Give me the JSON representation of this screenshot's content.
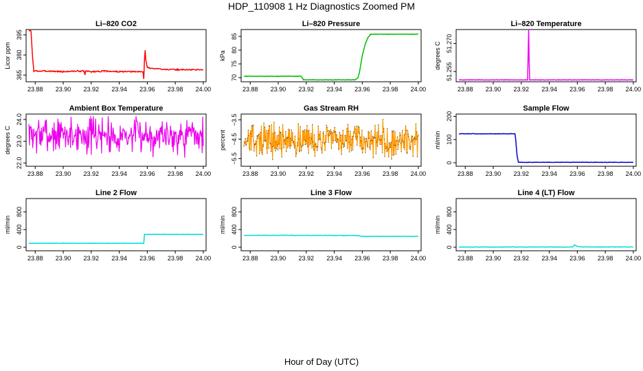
{
  "figure": {
    "title": "HDP_110908  1 Hz Diagnostics Zoomed PM",
    "xlabel": "Hour of Day (UTC)"
  },
  "chart_data": [
    {
      "id": "co2",
      "type": "line",
      "title": "Li–820 CO2",
      "ylabel": "Licor ppm",
      "color": "#ff0000",
      "xlim": [
        23.8735,
        24.002
      ],
      "ylim": [
        360,
        399
      ],
      "xticks": [
        23.88,
        23.9,
        23.92,
        23.94,
        23.96,
        23.98,
        24.0
      ],
      "xtick_labels": [
        "23.88",
        "23.90",
        "23.92",
        "23.94",
        "23.96",
        "23.98",
        "24.00"
      ],
      "yticks": [
        365,
        380,
        395
      ],
      "ytick_labels": [
        "365",
        "380",
        "395"
      ],
      "series": [
        {
          "x": [
            23.8755,
            23.877,
            23.878,
            23.879,
            23.88,
            23.89,
            23.9,
            23.91,
            23.915,
            23.9155,
            23.916,
            23.92,
            23.93,
            23.94,
            23.95,
            23.957,
            23.9575,
            23.958,
            23.9585,
            23.959,
            23.96,
            23.962,
            23.97,
            23.98,
            23.99,
            24.0
          ],
          "y": [
            398,
            398,
            380,
            368,
            368,
            368,
            367.5,
            368,
            368,
            365,
            368,
            367.5,
            368,
            367.5,
            367.5,
            367.5,
            362,
            376,
            384,
            376,
            371,
            370,
            369.5,
            369,
            369,
            369
          ]
        }
      ]
    },
    {
      "id": "pressure",
      "type": "line",
      "title": "Li–820 Pressure",
      "ylabel": "kPa",
      "color": "#00bb00",
      "xlim": [
        23.8735,
        24.002
      ],
      "ylim": [
        68.5,
        87.5
      ],
      "xticks": [
        23.88,
        23.9,
        23.92,
        23.94,
        23.96,
        23.98,
        24.0
      ],
      "xtick_labels": [
        "23.88",
        "23.90",
        "23.92",
        "23.94",
        "23.96",
        "23.98",
        "24.00"
      ],
      "yticks": [
        70,
        75,
        80,
        85
      ],
      "ytick_labels": [
        "70",
        "75",
        "80",
        "85"
      ],
      "series": [
        {
          "x": [
            23.8755,
            23.9,
            23.9165,
            23.918,
            23.93,
            23.955,
            23.957,
            23.958,
            23.96,
            23.962,
            23.964,
            23.966,
            23.97,
            24.0
          ],
          "y": [
            70.5,
            70.5,
            70.5,
            69.2,
            69.2,
            69.2,
            70,
            72,
            78,
            82,
            84.5,
            85.8,
            85.8,
            85.8
          ]
        }
      ]
    },
    {
      "id": "temperature",
      "type": "line",
      "title": "Li–820 Temperature",
      "ylabel": "degrees C",
      "color": "#ee00ee",
      "xlim": [
        23.8735,
        24.002
      ],
      "ylim": [
        51.2495,
        51.2775
      ],
      "xticks": [
        23.88,
        23.9,
        23.92,
        23.94,
        23.96,
        23.98,
        24.0
      ],
      "xtick_labels": [
        "23.88",
        "23.90",
        "23.92",
        "23.94",
        "23.96",
        "23.98",
        "24.00"
      ],
      "yticks": [
        51.255,
        51.27
      ],
      "ytick_labels": [
        "51.255",
        "51.270"
      ],
      "series": [
        {
          "x": [
            23.8755,
            23.9245,
            23.925,
            23.9253,
            23.9256,
            23.926,
            23.9265,
            24.0
          ],
          "y": [
            51.2505,
            51.2505,
            51.268,
            51.2775,
            51.262,
            51.2505,
            51.2505,
            51.2505
          ]
        }
      ]
    },
    {
      "id": "ambient",
      "type": "line",
      "title": "Ambient Box Temperature",
      "ylabel": "degrees C",
      "color": "#ee00ee",
      "xlim": [
        23.8735,
        24.002
      ],
      "ylim": [
        21.85,
        24.25
      ],
      "xticks": [
        23.88,
        23.9,
        23.92,
        23.94,
        23.96,
        23.98,
        24.0
      ],
      "xtick_labels": [
        "23.88",
        "23.90",
        "23.92",
        "23.94",
        "23.96",
        "23.98",
        "24.00"
      ],
      "yticks": [
        22.0,
        23.0,
        24.0
      ],
      "ytick_labels": [
        "22.0",
        "23.0",
        "24.0"
      ],
      "noise": {
        "x0": 23.8755,
        "x1": 24.0,
        "n": 320,
        "mean": 23.3,
        "sd": 0.42,
        "min": 22.05,
        "max": 24.15,
        "seed": 7
      },
      "series": []
    },
    {
      "id": "rh",
      "type": "line",
      "title": "Gas Stream RH",
      "ylabel": "percent",
      "color": "#ff9900",
      "marker_color": "#333333",
      "xlim": [
        23.8735,
        24.002
      ],
      "ylim": [
        -5.9,
        -3.2
      ],
      "xticks": [
        23.88,
        23.9,
        23.92,
        23.94,
        23.96,
        23.98,
        24.0
      ],
      "xtick_labels": [
        "23.88",
        "23.90",
        "23.92",
        "23.94",
        "23.96",
        "23.98",
        "24.00"
      ],
      "yticks": [
        -5.5,
        -4.5,
        -3.5
      ],
      "ytick_labels": [
        "−5.5",
        "−4.5",
        "−3.5"
      ],
      "noise": {
        "x0": 23.8755,
        "x1": 24.0,
        "n": 360,
        "mean": -4.55,
        "sd": 0.42,
        "min": -5.85,
        "max": -3.3,
        "seed": 13
      },
      "series": []
    },
    {
      "id": "sample",
      "type": "line",
      "title": "Sample Flow",
      "ylabel": "ml/min",
      "color": "#0000cc",
      "xlim": [
        23.8735,
        24.002
      ],
      "ylim": [
        -15,
        210
      ],
      "xticks": [
        23.88,
        23.9,
        23.92,
        23.94,
        23.96,
        23.98,
        24.0
      ],
      "xtick_labels": [
        "23.88",
        "23.90",
        "23.92",
        "23.94",
        "23.96",
        "23.98",
        "24.00"
      ],
      "yticks": [
        0,
        100,
        200
      ],
      "ytick_labels": [
        "0",
        "100",
        "200"
      ],
      "series": [
        {
          "x": [
            23.8755,
            23.9,
            23.9155,
            23.916,
            23.917,
            23.918,
            23.93,
            23.95,
            24.0
          ],
          "y": [
            125,
            125,
            125,
            100,
            30,
            2,
            2,
            2,
            2
          ]
        }
      ]
    },
    {
      "id": "line2",
      "type": "line",
      "title": "Line 2 Flow",
      "ylabel": "ml/min",
      "color": "#00dddd",
      "xlim": [
        23.8735,
        24.002
      ],
      "ylim": [
        -80,
        1100
      ],
      "xticks": [
        23.88,
        23.9,
        23.92,
        23.94,
        23.96,
        23.98,
        24.0
      ],
      "xtick_labels": [
        "23.88",
        "23.90",
        "23.92",
        "23.94",
        "23.96",
        "23.98",
        "24.00"
      ],
      "yticks": [
        0,
        400,
        800
      ],
      "ytick_labels": [
        "0",
        "400",
        "800"
      ],
      "series": [
        {
          "x": [
            23.8755,
            23.9,
            23.9575,
            23.958,
            23.97,
            24.0
          ],
          "y": [
            90,
            90,
            90,
            290,
            290,
            290
          ]
        }
      ]
    },
    {
      "id": "line3",
      "type": "line",
      "title": "Line 3 Flow",
      "ylabel": "ml/min",
      "color": "#00dddd",
      "xlim": [
        23.8735,
        24.002
      ],
      "ylim": [
        -80,
        1100
      ],
      "xticks": [
        23.88,
        23.9,
        23.92,
        23.94,
        23.96,
        23.98,
        24.0
      ],
      "xtick_labels": [
        "23.88",
        "23.90",
        "23.92",
        "23.94",
        "23.96",
        "23.98",
        "24.00"
      ],
      "yticks": [
        0,
        400,
        800
      ],
      "ytick_labels": [
        "0",
        "400",
        "800"
      ],
      "series": [
        {
          "x": [
            23.8755,
            23.9,
            23.93,
            23.9575,
            23.959,
            23.98,
            24.0
          ],
          "y": [
            270,
            270,
            268,
            265,
            245,
            245,
            245
          ]
        }
      ]
    },
    {
      "id": "line4",
      "type": "line",
      "title": "Line 4 (LT) Flow",
      "ylabel": "ml/min",
      "color": "#00dddd",
      "xlim": [
        23.8735,
        24.002
      ],
      "ylim": [
        -80,
        1100
      ],
      "xticks": [
        23.88,
        23.9,
        23.92,
        23.94,
        23.96,
        23.98,
        24.0
      ],
      "xtick_labels": [
        "23.88",
        "23.90",
        "23.92",
        "23.94",
        "23.96",
        "23.98",
        "24.00"
      ],
      "yticks": [
        0,
        400,
        800
      ],
      "ytick_labels": [
        "0",
        "400",
        "800"
      ],
      "series": [
        {
          "x": [
            23.8755,
            23.9,
            23.957,
            23.958,
            23.9585,
            23.96,
            23.962,
            23.97,
            24.0
          ],
          "y": [
            5,
            5,
            5,
            60,
            45,
            20,
            8,
            5,
            5
          ]
        }
      ]
    }
  ]
}
